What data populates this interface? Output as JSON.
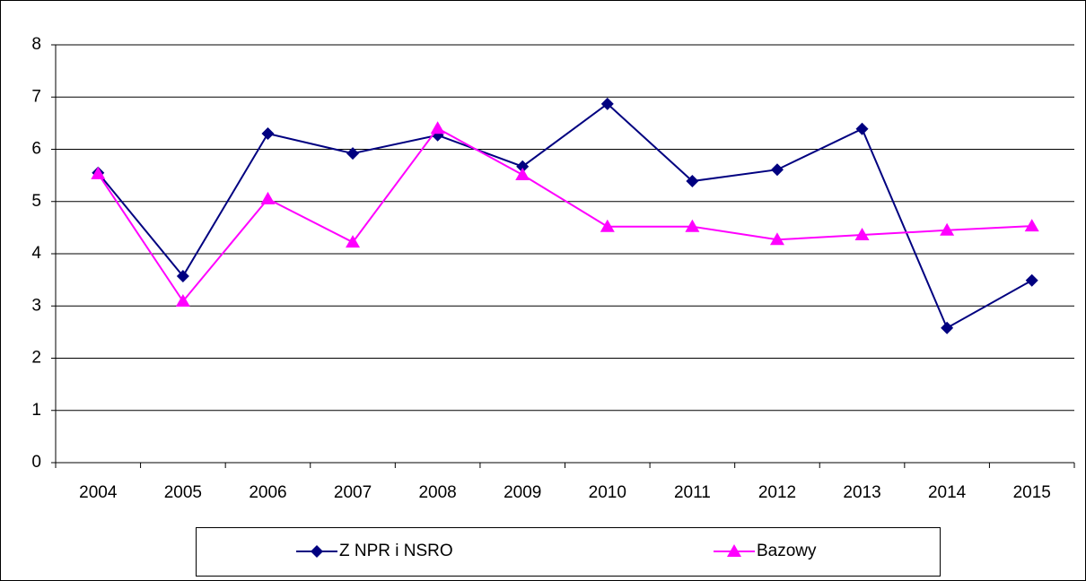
{
  "chart_data": {
    "type": "line",
    "categories": [
      "2004",
      "2005",
      "2006",
      "2007",
      "2008",
      "2009",
      "2010",
      "2011",
      "2012",
      "2013",
      "2014",
      "2015"
    ],
    "series": [
      {
        "name": "Z NPR i NSRO",
        "color": "#000080",
        "marker": "diamond",
        "values": [
          5.55,
          3.57,
          6.3,
          5.92,
          6.27,
          5.67,
          6.87,
          5.39,
          5.61,
          6.39,
          2.58,
          3.49
        ]
      },
      {
        "name": "Bazowy",
        "color": "#ff00ff",
        "marker": "triangle",
        "values": [
          5.53,
          3.09,
          5.05,
          4.22,
          6.4,
          5.51,
          4.52,
          4.52,
          4.27,
          4.36,
          4.45,
          4.53
        ]
      }
    ],
    "ylim": [
      0,
      8
    ],
    "yticks": [
      0,
      1,
      2,
      3,
      4,
      5,
      6,
      7,
      8
    ],
    "grid": true,
    "legend": "bottom"
  }
}
